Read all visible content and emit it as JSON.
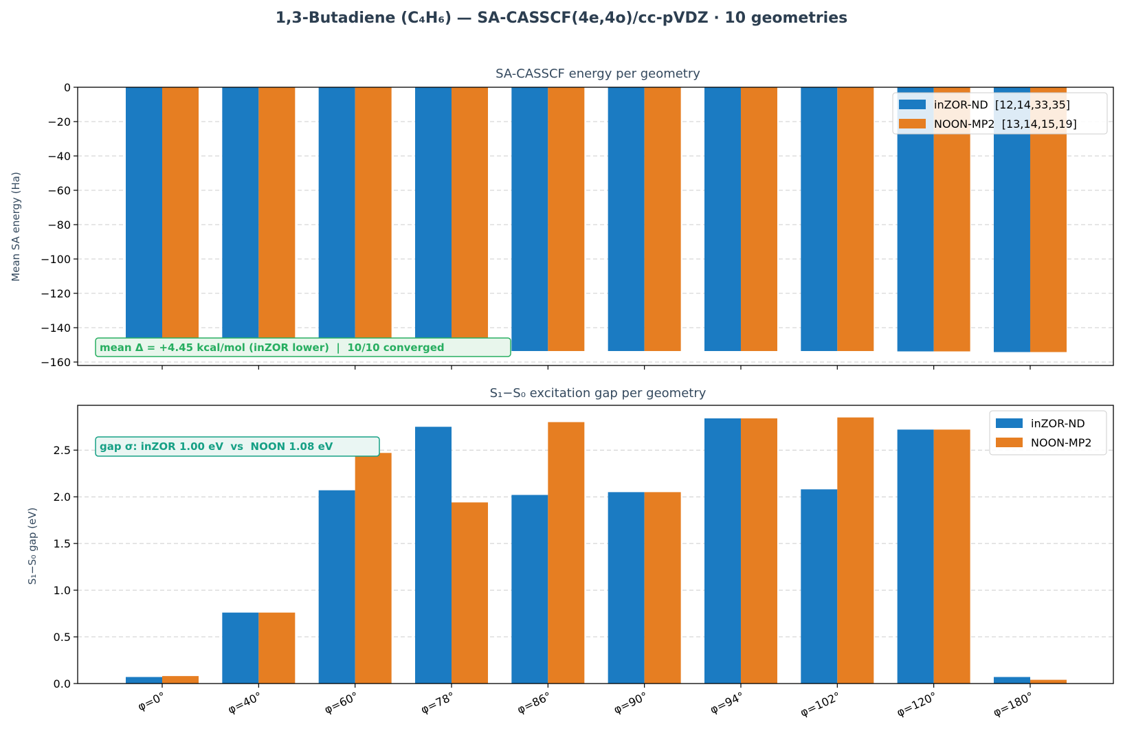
{
  "figure": {
    "title": "1,3-Butadiene (C₄H₆) — SA-CASSCF(4e,4o)/cc-pVDZ · 10 geometries"
  },
  "colors": {
    "series_a": "#1b7bc2",
    "series_b": "#e67e22",
    "text_dark": "#2c3e50",
    "anno_green": "#27ae60",
    "anno_green_bg": "#e8f6ec",
    "anno_teal": "#16a085",
    "anno_teal_bg": "#eaf6f3",
    "grid": "#cccccc"
  },
  "chart_data": [
    {
      "type": "bar",
      "title": "SA-CASSCF energy per geometry",
      "xlabel": "",
      "ylabel": "Mean SA energy (Ha)",
      "categories": [
        "φ=0°",
        "φ=40°",
        "φ=60°",
        "φ=78°",
        "φ=86°",
        "φ=90°",
        "φ=94°",
        "φ=102°",
        "φ=120°",
        "φ=180°"
      ],
      "series": [
        {
          "name": "inZOR-ND  [12,14,33,35]",
          "values": [
            -153.2,
            -153.3,
            -153.4,
            -153.5,
            -153.6,
            -153.6,
            -153.6,
            -153.6,
            -153.8,
            -154.2
          ]
        },
        {
          "name": "NOON-MP2  [13,14,15,19]",
          "values": [
            -153.2,
            -153.3,
            -153.4,
            -153.5,
            -153.6,
            -153.6,
            -153.6,
            -153.6,
            -153.8,
            -154.2
          ]
        }
      ],
      "ylim": [
        -162,
        0
      ],
      "yticks": [
        0,
        -20,
        -40,
        -60,
        -80,
        -100,
        -120,
        -140,
        -160
      ],
      "ytick_labels": [
        "0",
        "−20",
        "−40",
        "−60",
        "−80",
        "−100",
        "−120",
        "−140",
        "−160"
      ],
      "grid": "y-dashed",
      "legend_position": "top-right",
      "annotation": "mean Δ = +4.45 kcal/mol (inZOR lower)  |  10/10 converged"
    },
    {
      "type": "bar",
      "title": "S₁−S₀ excitation gap per geometry",
      "xlabel": "",
      "ylabel": "S₁−S₀ gap (eV)",
      "categories": [
        "φ=0°",
        "φ=40°",
        "φ=60°",
        "φ=78°",
        "φ=86°",
        "φ=90°",
        "φ=94°",
        "φ=102°",
        "φ=120°",
        "φ=180°"
      ],
      "series": [
        {
          "name": "inZOR-ND",
          "values": [
            0.07,
            0.76,
            2.07,
            2.75,
            2.02,
            2.05,
            2.84,
            2.08,
            2.72,
            0.07
          ]
        },
        {
          "name": "NOON-MP2",
          "values": [
            0.08,
            0.76,
            2.47,
            1.94,
            2.8,
            2.05,
            2.84,
            2.85,
            2.72,
            0.04
          ]
        }
      ],
      "ylim": [
        0,
        2.98
      ],
      "yticks": [
        0.0,
        0.5,
        1.0,
        1.5,
        2.0,
        2.5
      ],
      "ytick_labels": [
        "0.0",
        "0.5",
        "1.0",
        "1.5",
        "2.0",
        "2.5"
      ],
      "grid": "y-dashed",
      "legend_position": "top-right",
      "annotation": "gap σ: inZOR 1.00 eV  vs  NOON 1.08 eV"
    }
  ]
}
